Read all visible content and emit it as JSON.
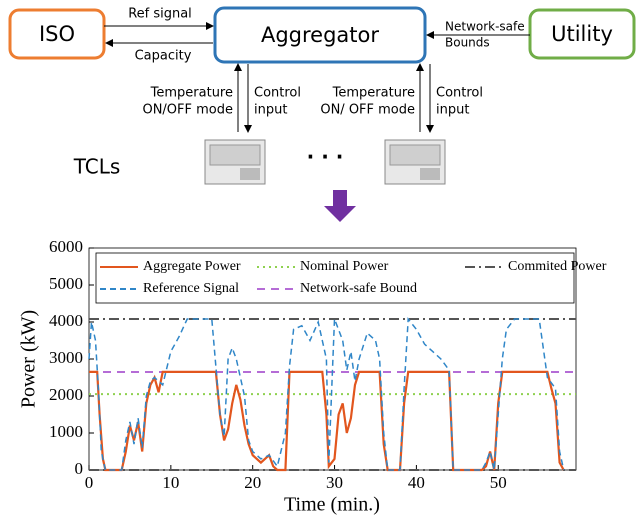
{
  "diagram": {
    "iso": "ISO",
    "aggregator": "Aggregator",
    "utility": "Utility",
    "ref_signal": "Ref signal",
    "capacity": "Capacity",
    "network_safe": [
      "Network-safe",
      "Bounds"
    ],
    "left_up": [
      "Temperature",
      "ON/OFF mode"
    ],
    "left_down": [
      "Control",
      "input"
    ],
    "right_up": [
      "Temperature",
      "ON/ OFF mode"
    ],
    "right_down": [
      "Control",
      "input"
    ],
    "tcls": "TCLs",
    "ellipsis": "· · ·"
  },
  "chart_data": {
    "type": "line",
    "xlabel": "Time (min.)",
    "ylabel": "Power (kW)",
    "xlim": [
      0,
      59.5
    ],
    "ylim": [
      0,
      6000
    ],
    "xticks": [
      0,
      10,
      20,
      30,
      40,
      50
    ],
    "yticks": [
      0,
      1000,
      2000,
      3000,
      4000,
      5000,
      6000
    ],
    "series": [
      {
        "name": "Aggregate Power",
        "color": "#e2561e",
        "dash": "solid",
        "x": [
          0,
          1,
          1.3,
          1.7,
          2,
          4,
          4.5,
          5,
          5.5,
          6,
          6.5,
          7,
          7.5,
          8,
          8.5,
          9,
          15.5,
          16,
          16.5,
          17,
          17.5,
          18,
          18.5,
          19,
          19.5,
          20,
          21,
          22,
          22.5,
          23,
          24,
          24.5,
          28.5,
          29,
          29.3,
          30,
          30.5,
          31,
          31.5,
          32,
          32.5,
          33,
          35.5,
          36,
          36.5,
          38,
          38.5,
          39,
          44,
          44.5,
          48,
          48.5,
          49,
          49.5,
          50,
          50.5,
          56,
          56.5,
          57,
          57.5,
          58
        ],
        "values": [
          2650,
          2650,
          1500,
          300,
          0,
          0,
          500,
          1200,
          800,
          1300,
          500,
          1800,
          2300,
          2500,
          2100,
          2650,
          2650,
          1500,
          800,
          1100,
          1800,
          2300,
          1900,
          1200,
          700,
          400,
          200,
          400,
          100,
          0,
          0,
          2650,
          2650,
          1500,
          100,
          300,
          1500,
          1800,
          1000,
          1400,
          2300,
          2650,
          2650,
          700,
          0,
          0,
          1800,
          2650,
          2650,
          0,
          0,
          100,
          500,
          0,
          1800,
          2650,
          2650,
          2200,
          1800,
          200,
          0
        ]
      },
      {
        "name": "Reference Signal",
        "color": "#2f86c8",
        "dash": "6,4",
        "x": [
          0,
          0.3,
          0.8,
          1.2,
          1.5,
          2,
          4,
          4.5,
          5,
          5.5,
          6,
          6.5,
          7,
          7.5,
          8,
          9,
          10,
          11,
          12,
          15,
          16,
          16.5,
          17,
          17.5,
          18,
          19,
          19.5,
          20,
          21,
          22,
          23,
          24,
          24.5,
          25,
          26,
          27,
          28,
          29,
          29.3,
          30,
          31,
          31.5,
          32,
          32.5,
          33,
          34,
          35,
          35.5,
          36,
          36.5,
          38,
          38.5,
          39,
          40,
          41,
          42,
          43,
          44,
          44.5,
          48,
          48.5,
          49,
          49.5,
          50,
          50.5,
          51,
          52,
          55,
          56,
          57,
          57.5,
          58
        ],
        "values": [
          3000,
          4000,
          3500,
          2000,
          500,
          0,
          0,
          800,
          1300,
          700,
          1400,
          600,
          2000,
          2400,
          2500,
          2300,
          3200,
          3600,
          4080,
          4080,
          1500,
          900,
          3000,
          3300,
          3000,
          2000,
          800,
          500,
          300,
          400,
          100,
          1000,
          2800,
          3800,
          3900,
          3500,
          4000,
          3000,
          200,
          4080,
          3500,
          2700,
          3200,
          2400,
          3000,
          3700,
          3500,
          3000,
          1000,
          0,
          0,
          2200,
          4080,
          3800,
          3400,
          3200,
          3000,
          2700,
          0,
          0,
          200,
          500,
          0,
          1500,
          3000,
          3800,
          4080,
          4080,
          2500,
          2200,
          500,
          0
        ]
      }
    ],
    "hlines": [
      {
        "name": "Nominal Power",
        "color": "#8fd14f",
        "dash": "2,4",
        "values": [
          2050
        ]
      },
      {
        "name": "Commited Power",
        "color": "#555555",
        "dash": "10,4,2,4",
        "values": [
          4080,
          0
        ]
      },
      {
        "name": "Network-safe Bound",
        "color": "#b56cd6",
        "dash": "8,6",
        "values": [
          2650
        ]
      }
    ]
  }
}
